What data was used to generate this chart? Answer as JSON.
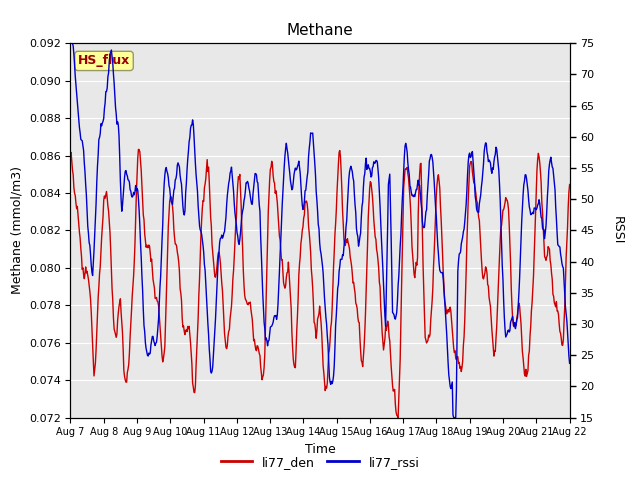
{
  "title": "Methane",
  "ylabel_left": "Methane (mmol/m3)",
  "ylabel_right": "RSSI",
  "xlabel": "Time",
  "ylim_left": [
    0.072,
    0.092
  ],
  "ylim_right": [
    15,
    75
  ],
  "yticks_left": [
    0.072,
    0.074,
    0.076,
    0.078,
    0.08,
    0.082,
    0.084,
    0.086,
    0.088,
    0.09,
    0.092
  ],
  "yticks_right": [
    15,
    20,
    25,
    30,
    35,
    40,
    45,
    50,
    55,
    60,
    65,
    70,
    75
  ],
  "xtick_labels": [
    "Aug 7",
    "Aug 8",
    "Aug 9",
    "Aug 10",
    "Aug 11",
    "Aug 12",
    "Aug 13",
    "Aug 14",
    "Aug 15",
    "Aug 16",
    "Aug 17",
    "Aug 18",
    "Aug 19",
    "Aug 20",
    "Aug 21",
    "Aug 22"
  ],
  "line1_color": "#cc0000",
  "line2_color": "#0000cc",
  "line1_label": "li77_den",
  "line2_label": "li77_rssi",
  "annotation_text": "HS_flux",
  "annotation_color": "#990000",
  "annotation_bg": "#ffff99",
  "annotation_edge": "#999966",
  "background_color": "#e8e8e8",
  "fig_bg": "#ffffff",
  "title_fontsize": 11,
  "axis_fontsize": 9,
  "tick_fontsize": 8,
  "legend_fontsize": 9
}
